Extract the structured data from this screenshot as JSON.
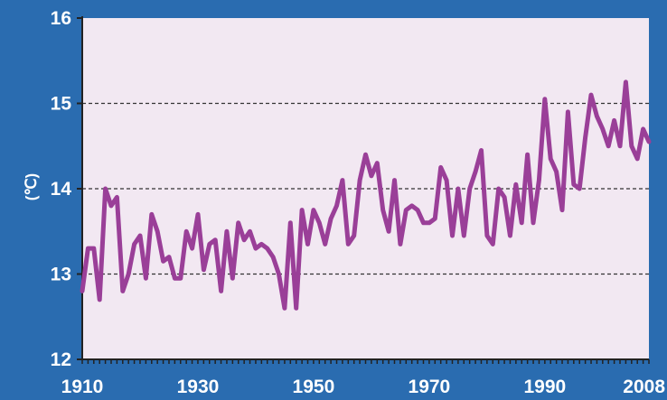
{
  "chart_data": {
    "type": "line",
    "title": "",
    "xlabel": "",
    "ylabel": "(℃)",
    "xlim": [
      1910,
      2008
    ],
    "ylim": [
      12,
      16
    ],
    "x_ticks": [
      "1910",
      "1930",
      "1950",
      "1970",
      "1990",
      "2008"
    ],
    "y_ticks": [
      "12",
      "13",
      "14",
      "15",
      "16"
    ],
    "grid": "dashed horizontal at 13, 14, 15",
    "colors": {
      "background": "#2a6cb0",
      "plot_area": "#f2e8f2",
      "line": "#9a3f98",
      "grid": "#333333",
      "text": "#ffffff"
    },
    "series": [
      {
        "x": [
          1910,
          1911,
          1912,
          1913,
          1914,
          1915,
          1916,
          1917,
          1918,
          1919,
          1920,
          1921,
          1922,
          1923,
          1924,
          1925,
          1926,
          1927,
          1928,
          1929,
          1930,
          1931,
          1932,
          1933,
          1934,
          1935,
          1936,
          1937,
          1938,
          1939,
          1940,
          1941,
          1942,
          1943,
          1944,
          1945,
          1946,
          1947,
          1948,
          1949,
          1950,
          1951,
          1952,
          1953,
          1954,
          1955,
          1956,
          1957,
          1958,
          1959,
          1960,
          1961,
          1962,
          1963,
          1964,
          1965,
          1966,
          1967,
          1968,
          1969,
          1970,
          1971,
          1972,
          1973,
          1974,
          1975,
          1976,
          1977,
          1978,
          1979,
          1980,
          1981,
          1982,
          1983,
          1984,
          1985,
          1986,
          1987,
          1988,
          1989,
          1990,
          1991,
          1992,
          1993,
          1994,
          1995,
          1996,
          1997,
          1998,
          1999,
          2000,
          2001,
          2002,
          2003,
          2004,
          2005,
          2006,
          2007,
          2008
        ],
        "values": [
          12.8,
          13.3,
          13.3,
          12.7,
          14.0,
          13.8,
          13.9,
          12.8,
          13.0,
          13.35,
          13.45,
          12.95,
          13.7,
          13.5,
          13.15,
          13.2,
          12.95,
          12.95,
          13.5,
          13.3,
          13.7,
          13.05,
          13.35,
          13.4,
          12.8,
          13.5,
          12.95,
          13.6,
          13.4,
          13.5,
          13.3,
          13.35,
          13.3,
          13.2,
          13.0,
          12.6,
          13.6,
          12.6,
          13.75,
          13.35,
          13.75,
          13.6,
          13.35,
          13.65,
          13.8,
          14.1,
          13.35,
          13.45,
          14.1,
          14.4,
          14.15,
          14.3,
          13.75,
          13.5,
          14.1,
          13.35,
          13.75,
          13.8,
          13.75,
          13.6,
          13.6,
          13.65,
          14.25,
          14.1,
          13.45,
          14.0,
          13.45,
          14.0,
          14.2,
          14.45,
          13.45,
          13.35,
          14.0,
          13.9,
          13.45,
          14.05,
          13.6,
          14.4,
          13.6,
          14.1,
          15.05,
          14.35,
          14.2,
          13.75,
          14.9,
          14.05,
          14.0,
          14.6,
          15.1,
          14.85,
          14.7,
          14.5,
          14.8,
          14.5,
          15.25,
          14.5,
          14.35,
          14.7,
          14.55
        ]
      }
    ]
  }
}
